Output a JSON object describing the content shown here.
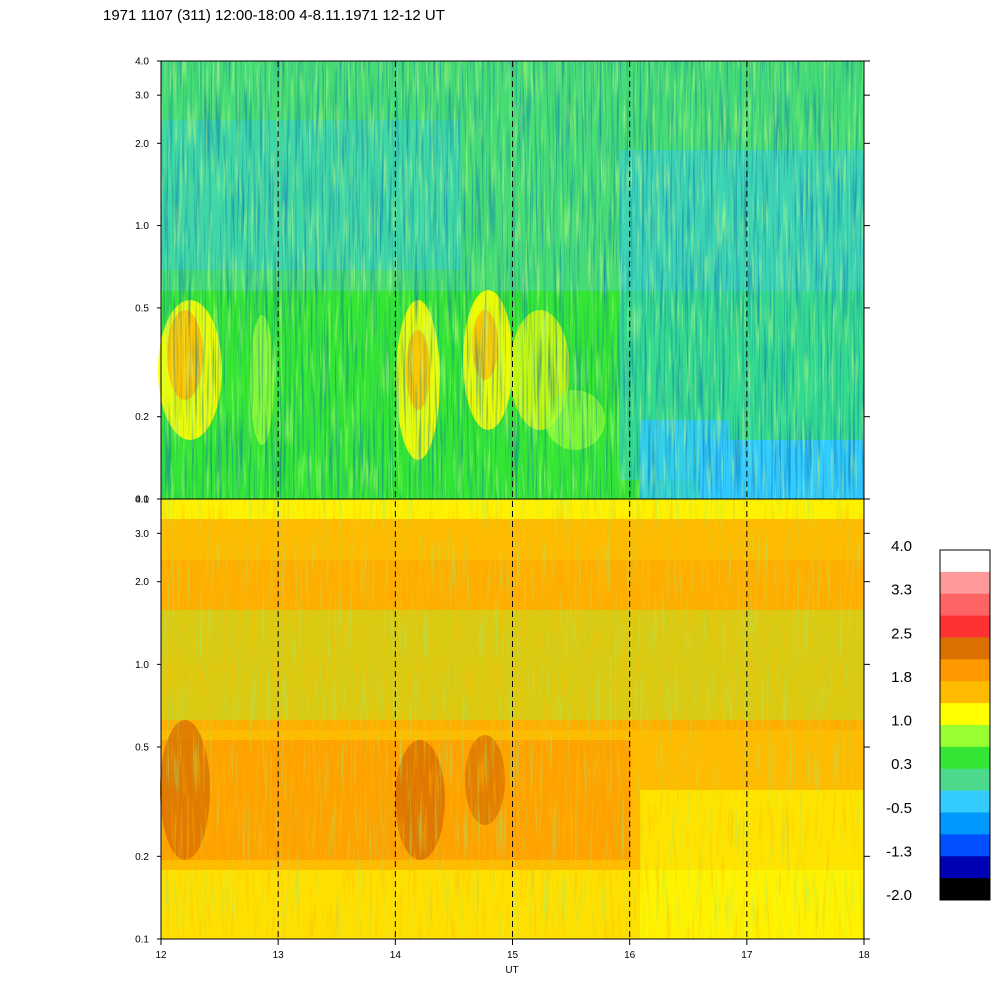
{
  "chart_data": {
    "type": "heatmap",
    "title": "1971 1107 (311) 12:00-18:00 4-8.11.1971  12-12 UT",
    "xlabel": "UT",
    "x_ticks": [
      12,
      13,
      14,
      15,
      16,
      17,
      18
    ],
    "xlim": [
      12,
      18
    ],
    "vertical_markers": [
      13,
      14,
      15,
      16,
      17
    ],
    "panels": [
      {
        "name": "upper",
        "y_scale": "log",
        "ylim": [
          0.1,
          4.0
        ],
        "y_ticks": [
          0.1,
          0.2,
          0.5,
          1.0,
          2.0,
          3.0,
          4.0
        ],
        "y_tick_labels": [
          "0.1",
          "0.2",
          "0.5",
          "1.0",
          "2.0",
          "3.0",
          "4.0"
        ]
      },
      {
        "name": "lower",
        "y_scale": "log",
        "ylim": [
          0.1,
          4.0
        ],
        "y_ticks": [
          0.1,
          0.2,
          0.5,
          1.0,
          2.0,
          3.0,
          4.0
        ],
        "y_tick_labels": [
          "0.1",
          "0.2",
          "0.5",
          "1.0",
          "2.0",
          "3.0",
          "4.0"
        ]
      }
    ],
    "colorbar": {
      "labels": [
        "4.0",
        "3.3",
        "2.5",
        "1.8",
        "1.0",
        "0.3",
        "-0.5",
        "-1.3",
        "-2.0"
      ],
      "colors": [
        "#ffffff",
        "#ff9a9a",
        "#ff6464",
        "#ff3232",
        "#d97000",
        "#ff9900",
        "#ffbb00",
        "#ffff00",
        "#99ff33",
        "#33e633",
        "#4dd98c",
        "#33ccff",
        "#0099ff",
        "#0050ff",
        "#0000b4",
        "#000000"
      ]
    }
  }
}
